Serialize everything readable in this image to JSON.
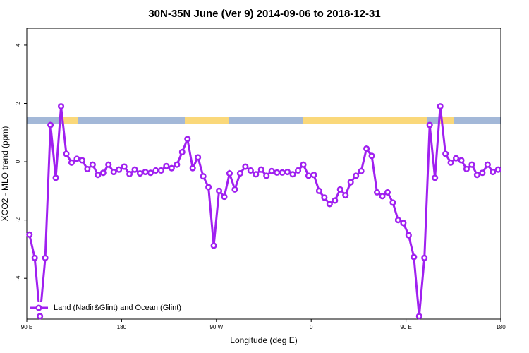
{
  "chart_data": {
    "type": "line",
    "title": "30N-35N June (Ver 9)   2014-09-06 to 2018-12-31",
    "x_label": "Longitude (deg E)",
    "y_label": "XCO2 - MLO trend (ppm)",
    "xlim": [
      90,
      540
    ],
    "ylim": [
      -5.4,
      4.58
    ],
    "xticks": [
      {
        "value": 90,
        "label": "90 E"
      },
      180,
      {
        "value": 270,
        "label": "90 W"
      },
      {
        "value": 360,
        "label": "0"
      },
      {
        "value": 450,
        "label": "90 E"
      },
      {
        "value": 540,
        "label": "180"
      }
    ],
    "yticks": [
      -4,
      -2,
      0,
      2,
      4
    ],
    "grid": false,
    "legend": "bottom-left",
    "x": [
      92.5,
      97.5,
      102.5,
      107.5,
      112.5,
      117.5,
      122.5,
      127.5,
      132.5,
      137.5,
      142.5,
      147.5,
      152.5,
      157.5,
      162.5,
      167.5,
      172.5,
      177.5,
      182.5,
      187.5,
      192.5,
      197.5,
      202.5,
      207.5,
      212.5,
      217.5,
      222.5,
      227.5,
      232.5,
      237.5,
      242.5,
      247.5,
      252.5,
      257.5,
      262.5,
      267.5,
      272.5,
      277.5,
      282.5,
      287.5,
      292.5,
      297.5,
      302.5,
      307.5,
      312.5,
      317.5,
      322.5,
      327.5,
      332.5,
      337.5,
      342.5,
      347.5,
      352.5,
      357.5,
      362.5,
      367.5,
      372.5,
      377.5,
      382.5,
      387.5,
      392.5,
      397.5,
      402.5,
      407.5,
      412.5,
      417.5,
      422.5,
      427.5,
      432.5,
      437.5,
      442.5,
      447.5,
      452.5,
      457.5,
      462.5,
      467.5,
      472.5,
      477.5,
      482.5,
      487.5,
      492.5,
      497.5,
      502.5,
      507.5,
      512.5,
      517.5,
      522.5,
      527.5,
      532.5,
      537.5
    ],
    "series": [
      {
        "name": "Land (Nadir&Glint) and Ocean (Glint)",
        "color": "#a020f0",
        "values": [
          -2.5,
          -3.3,
          -5.3,
          -3.3,
          1.26,
          -0.55,
          1.9,
          0.27,
          -0.03,
          0.1,
          0.05,
          -0.25,
          -0.1,
          -0.45,
          -0.38,
          -0.1,
          -0.35,
          -0.27,
          -0.17,
          -0.42,
          -0.27,
          -0.4,
          -0.35,
          -0.38,
          -0.3,
          -0.3,
          -0.15,
          -0.22,
          -0.1,
          0.33,
          0.78,
          -0.22,
          0.15,
          -0.5,
          -0.87,
          -2.88,
          -1.0,
          -1.2,
          -0.4,
          -0.95,
          -0.4,
          -0.17,
          -0.3,
          -0.43,
          -0.27,
          -0.48,
          -0.32,
          -0.37,
          -0.37,
          -0.35,
          -0.43,
          -0.3,
          -0.1,
          -0.48,
          -0.45,
          -1.0,
          -1.23,
          -1.45,
          -1.33,
          -0.95,
          -1.15,
          -0.7,
          -0.48,
          -0.32,
          0.45,
          0.2,
          -1.05,
          -1.18,
          -1.05,
          -1.4,
          -2.0,
          -2.1,
          -2.52,
          -3.27,
          -5.3,
          -3.3,
          1.26,
          -0.55,
          1.9,
          0.27,
          -0.03,
          0.12,
          0.05,
          -0.25,
          -0.1,
          -0.45,
          -0.38,
          -0.1,
          -0.35,
          -0.27
        ]
      }
    ]
  }
}
